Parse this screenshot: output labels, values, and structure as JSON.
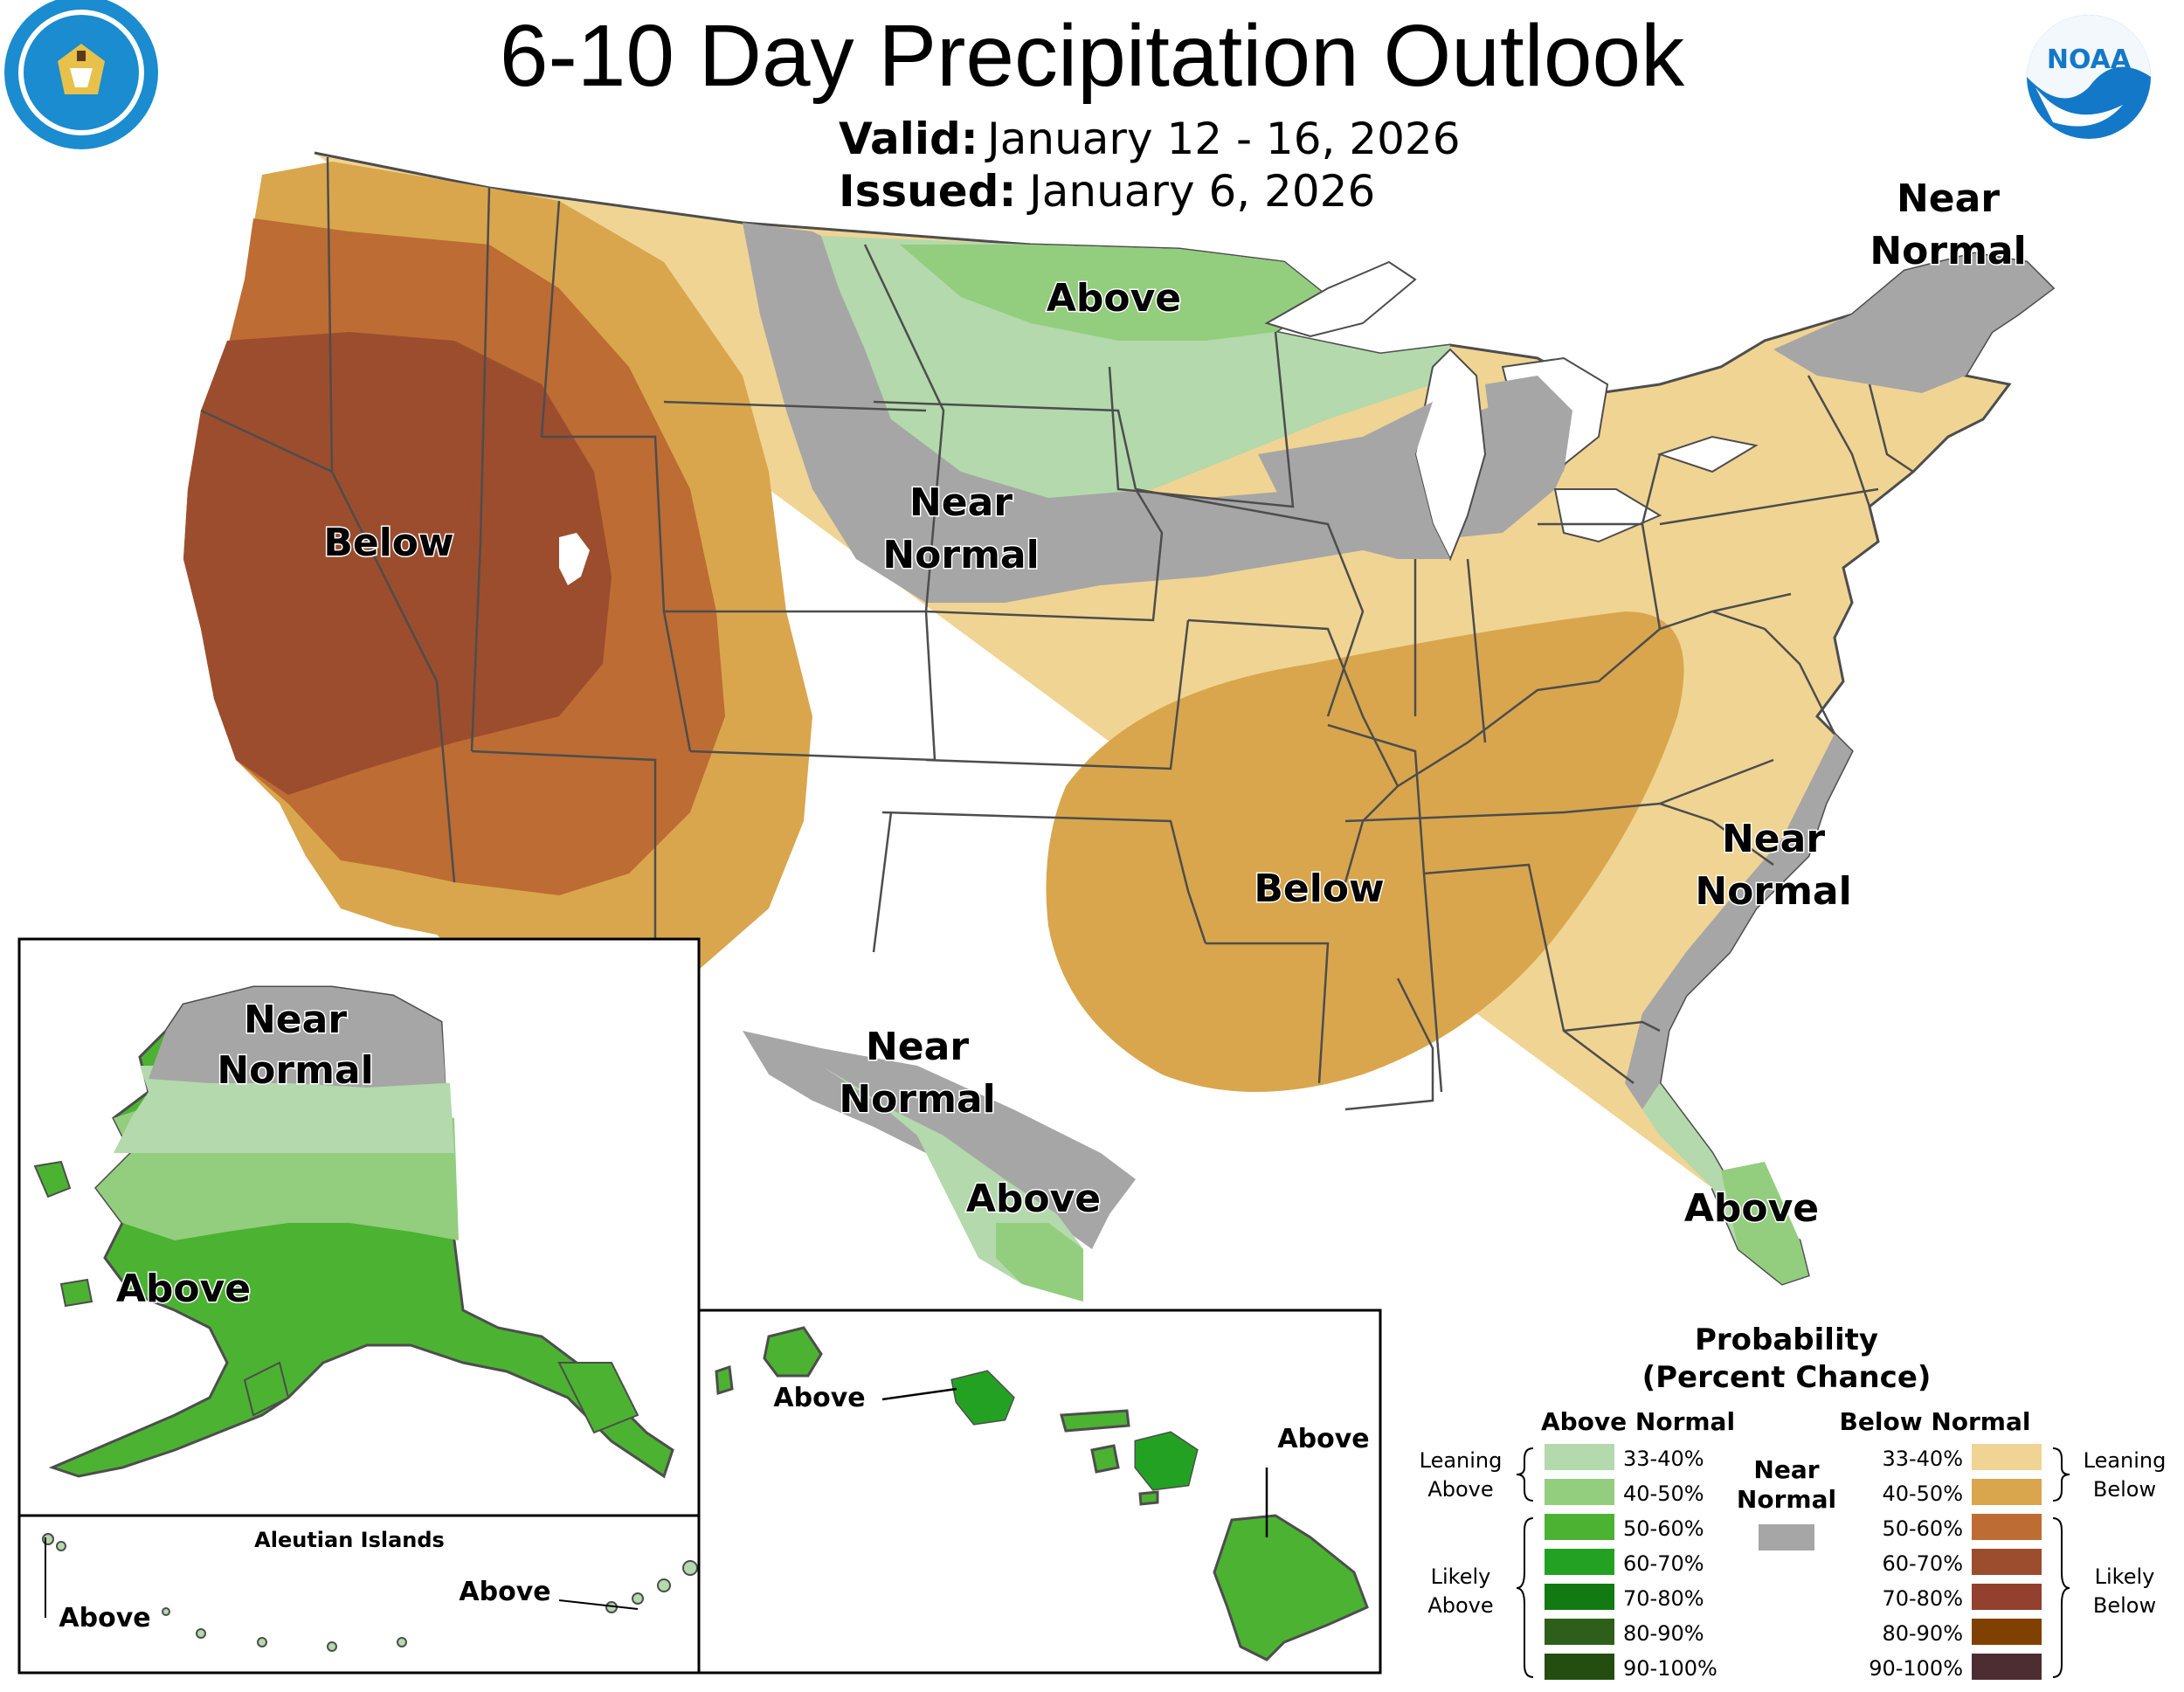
{
  "header": {
    "title": "6-10 Day Precipitation Outlook",
    "valid_label": "Valid:",
    "valid_value": "January 12 - 16, 2026",
    "issued_label": "Issued:",
    "issued_value": "January 6, 2026"
  },
  "logos": {
    "doc_seal": "department-of-commerce-seal",
    "noaa": "NOAA"
  },
  "colors": {
    "above_33_40": "#b3d9ac",
    "above_40_50": "#93cd7e",
    "above_50_60": "#4cb232",
    "above_60_70": "#23a123",
    "above_70_80": "#127a12",
    "above_80_90": "#2e5f1a",
    "above_90_100": "#244d10",
    "near_normal": "#a6a6a6",
    "below_33_40": "#f0d493",
    "below_40_50": "#d9a64d",
    "below_50_60": "#bd6c33",
    "below_60_70": "#9c4d2e",
    "below_70_80": "#93402e",
    "below_80_90": "#7f4000",
    "below_90_100": "#4d2d32",
    "state_line": "#4d4d4d"
  },
  "conus_labels": {
    "west_below": "Below",
    "north_above": "Above",
    "plains_near_1": "Near",
    "plains_near_2": "Normal",
    "ne_near_1": "Near",
    "ne_near_2": "Normal",
    "south_below": "Below",
    "se_near_1": "Near",
    "se_near_2": "Normal",
    "tx_near_1": "Near",
    "tx_near_2": "Normal",
    "tx_above": "Above",
    "fl_above": "Above"
  },
  "alaska": {
    "near_1": "Near",
    "near_2": "Normal",
    "above": "Above",
    "aleutians_title": "Aleutian Islands",
    "aleutians_above_west": "Above",
    "aleutians_above_east": "Above"
  },
  "hawaii": {
    "above_oahu": "Above",
    "above_big_island": "Above"
  },
  "legend": {
    "title_1": "Probability",
    "title_2": "(Percent Chance)",
    "above_header": "Above Normal",
    "below_header": "Below Normal",
    "near_1": "Near",
    "near_2": "Normal",
    "leaning_above_1": "Leaning",
    "leaning_above_2": "Above",
    "likely_above_1": "Likely",
    "likely_above_2": "Above",
    "leaning_below_1": "Leaning",
    "leaning_below_2": "Below",
    "likely_below_1": "Likely",
    "likely_below_2": "Below",
    "above_ranges": [
      "33-40%",
      "40-50%",
      "50-60%",
      "60-70%",
      "70-80%",
      "80-90%",
      "90-100%"
    ],
    "below_ranges": [
      "33-40%",
      "40-50%",
      "50-60%",
      "60-70%",
      "70-80%",
      "80-90%",
      "90-100%"
    ]
  }
}
